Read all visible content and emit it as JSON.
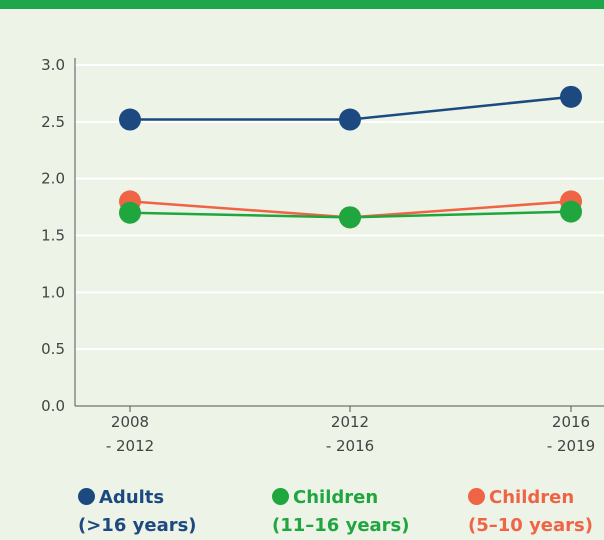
{
  "chart_data": {
    "type": "line",
    "categories": [
      [
        "2008",
        "- 2012"
      ],
      [
        "2012",
        "- 2016"
      ],
      [
        "2016",
        "- 2019"
      ]
    ],
    "ylim": [
      0,
      3.0
    ],
    "yticks": [
      "0.0",
      "0.5",
      "1.0",
      "1.5",
      "2.0",
      "2.5",
      "3.0"
    ],
    "grid": true,
    "legend_position": "bottom",
    "series": [
      {
        "name_line1": "Adults",
        "name_line2": "(>16 years)",
        "color": "#1c4a80",
        "values": [
          2.52,
          2.52,
          2.72
        ]
      },
      {
        "name_line1": "Children",
        "name_line2": "(11–16 years)",
        "color": "#1fa63f",
        "values": [
          1.7,
          1.66,
          1.71
        ]
      },
      {
        "name_line1": "Children",
        "name_line2": "(5–10 years)",
        "color": "#ef6444",
        "values": [
          1.8,
          1.66,
          1.8
        ]
      }
    ]
  }
}
